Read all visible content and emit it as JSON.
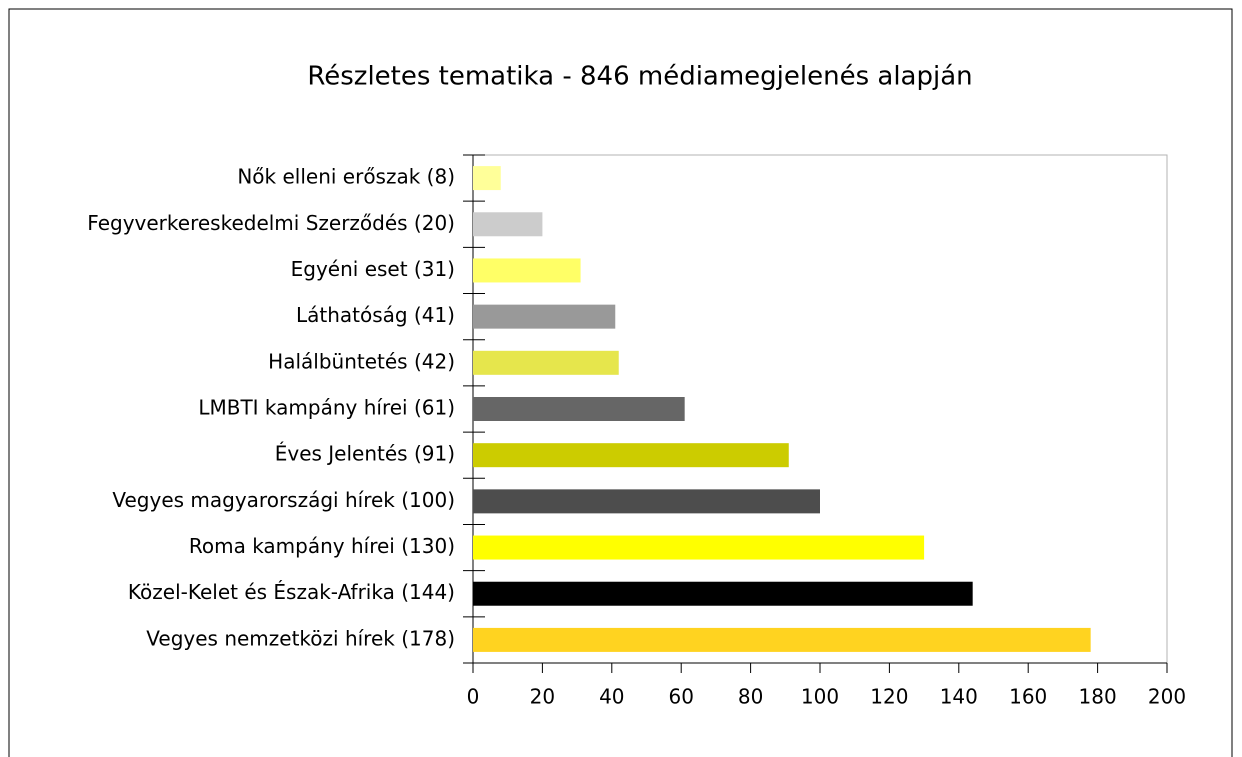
{
  "chart_data": {
    "type": "bar",
    "orientation": "horizontal",
    "title": "Részletes tematika - 846 médiamegjelenés alapján",
    "categories": [
      "Nők elleni erőszak (8)",
      "Fegyverkereskedelmi Szerződés (20)",
      "Egyéni eset (31)",
      "Láthatóság (41)",
      "Halálbüntetés (42)",
      "LMBTI kampány hírei (61)",
      "Éves Jelentés (91)",
      "Vegyes magyarországi hírek (100)",
      "Roma kampány hírei (130)",
      "Közel-Kelet és Észak-Afrika (144)",
      "Vegyes nemzetközi hírek (178)"
    ],
    "values": [
      8,
      20,
      31,
      41,
      42,
      61,
      91,
      100,
      130,
      144,
      178
    ],
    "colors": [
      "#ffff99",
      "#cccccc",
      "#ffff66",
      "#999999",
      "#e6e64c",
      "#666666",
      "#cccc00",
      "#4d4d4d",
      "#ffff00",
      "#000000",
      "#ffd320"
    ],
    "xlim": [
      0,
      200
    ],
    "xticks": [
      0,
      20,
      40,
      60,
      80,
      100,
      120,
      140,
      160,
      180,
      200
    ],
    "grid": false
  }
}
